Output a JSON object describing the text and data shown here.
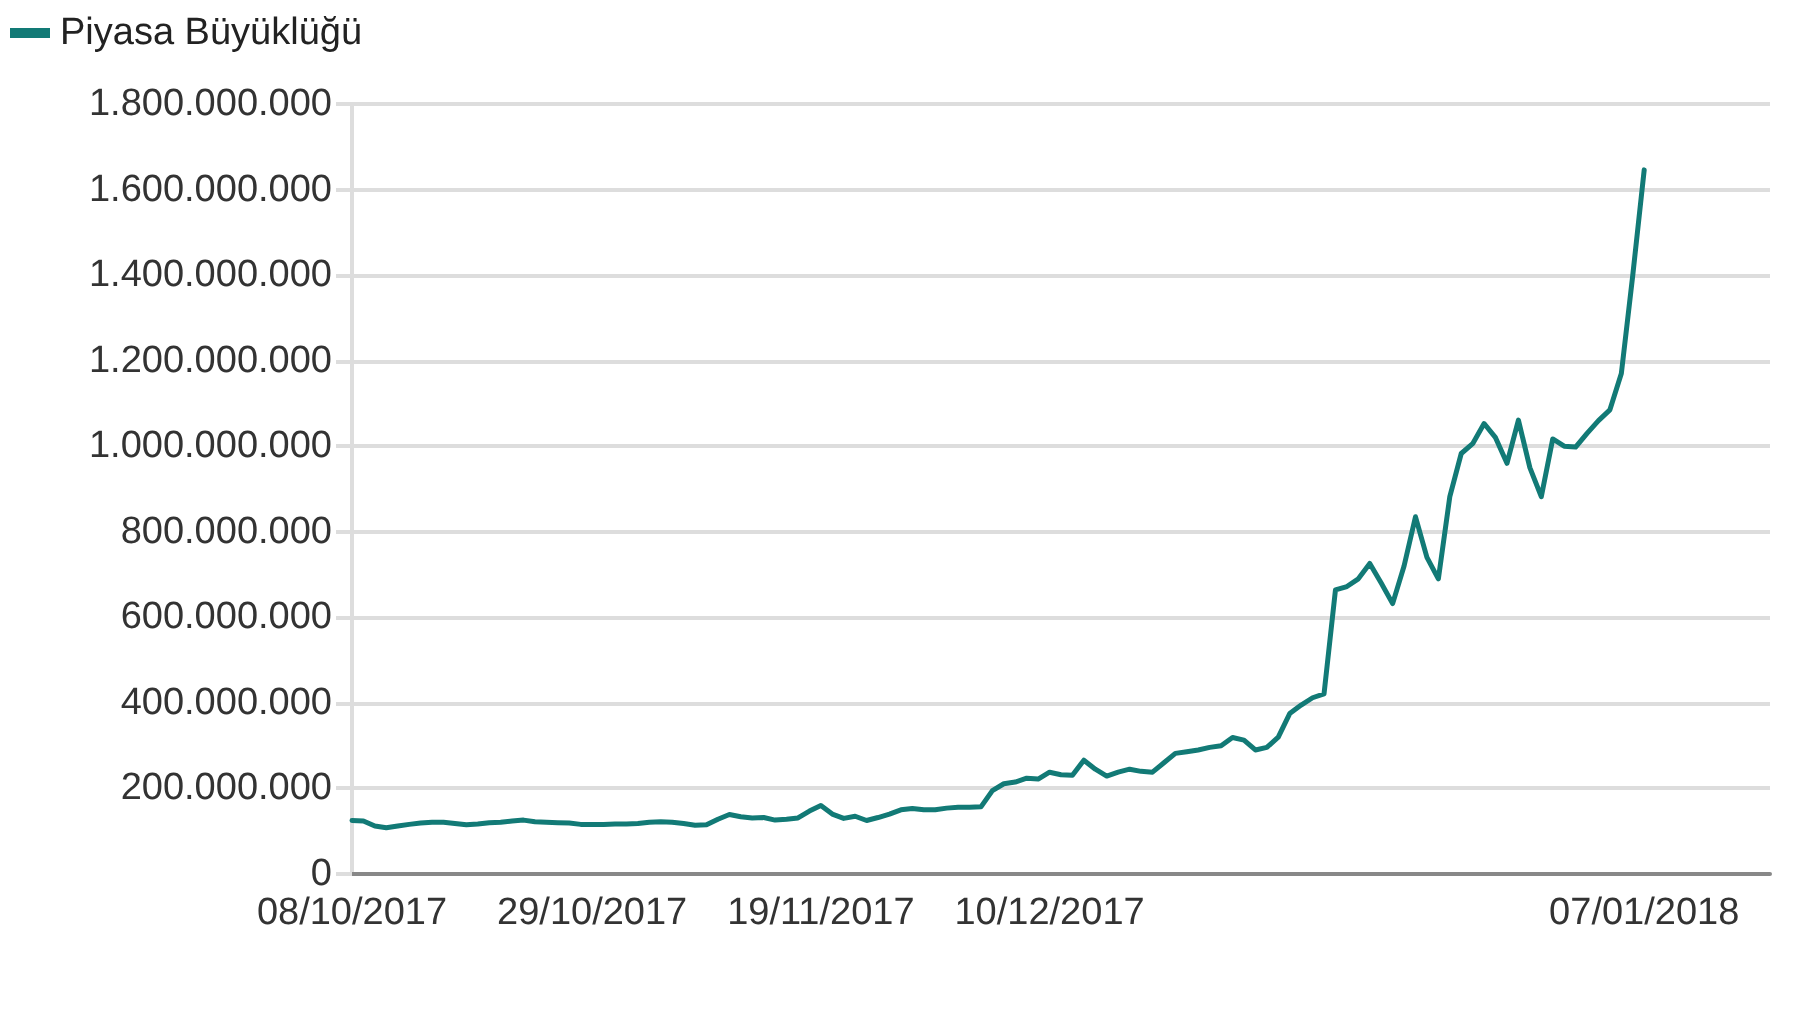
{
  "chart_data": {
    "type": "line",
    "categories": [
      "08/10/2017",
      null,
      null,
      null,
      null,
      null,
      null,
      null,
      null,
      null,
      null,
      null,
      null,
      null,
      null,
      null,
      null,
      null,
      null,
      null,
      null,
      "29/10/2017",
      null,
      null,
      null,
      null,
      null,
      null,
      null,
      null,
      null,
      null,
      null,
      null,
      null,
      null,
      null,
      null,
      null,
      null,
      null,
      "19/11/2017",
      null,
      null,
      null,
      null,
      null,
      null,
      null,
      null,
      null,
      null,
      null,
      null,
      null,
      null,
      null,
      null,
      null,
      null,
      null,
      "10/12/2017",
      null,
      null,
      null,
      null,
      null,
      null,
      null,
      null,
      null,
      null,
      null,
      null,
      null,
      null,
      null,
      null,
      null,
      null,
      null,
      null,
      null,
      null,
      null,
      null,
      null,
      null,
      null,
      null,
      null,
      null,
      null,
      null,
      null,
      null,
      null,
      null,
      null,
      null,
      null,
      null,
      null,
      null,
      null,
      null,
      null,
      null,
      null,
      null,
      null,
      null,
      null,
      "07/01/2018",
      null,
      null,
      null,
      null,
      null,
      null,
      null,
      null,
      null,
      null,
      null
    ],
    "series": [
      {
        "name": "Piyasa Büyüklüğü",
        "color": "#127a76",
        "values": [
          125000000,
          124000000,
          112000000,
          108000000,
          112000000,
          116000000,
          119000000,
          121000000,
          121000000,
          118000000,
          115000000,
          117000000,
          120000000,
          121000000,
          124000000,
          126000000,
          122000000,
          121000000,
          120000000,
          119000000,
          116000000,
          116000000,
          116000000,
          117000000,
          117000000,
          118000000,
          121000000,
          122000000,
          121000000,
          118000000,
          114000000,
          115000000,
          128000000,
          139000000,
          134000000,
          131000000,
          132000000,
          126000000,
          128000000,
          131000000,
          147000000,
          160000000,
          140000000,
          130000000,
          135000000,
          125000000,
          132000000,
          140000000,
          150000000,
          153000000,
          150000000,
          150000000,
          154000000,
          156000000,
          156000000,
          157000000,
          195000000,
          211000000,
          215000000,
          224000000,
          222000000,
          238000000,
          232000000,
          231000000,
          266000000,
          245000000,
          229000000,
          238000000,
          245000000,
          240000000,
          238000000,
          260000000,
          282000000,
          286000000,
          290000000,
          296000000,
          300000000,
          319000000,
          313000000,
          290000000,
          296000000,
          320000000,
          375000000,
          395000000,
          412000000,
          421000000,
          664000000,
          672000000,
          690000000,
          726000000,
          680000000,
          632000000,
          720000000,
          835000000,
          740000000,
          690000000,
          882000000,
          983000000,
          1006000000,
          1053000000,
          1020000000,
          960000000,
          1061000000,
          950000000,
          882000000,
          1017000000,
          1000000000,
          998000000,
          1030000000,
          1060000000,
          1085000000,
          1170000000,
          1400000000,
          1646000000,
          null,
          null,
          null,
          null,
          null,
          null,
          null,
          null,
          null,
          null,
          null
        ]
      }
    ],
    "ylim": [
      0,
      1800000000
    ],
    "yticks": [
      0,
      {
        "value": 200000000,
        "label": "200.000.000"
      },
      {
        "value": 400000000,
        "label": "400.000.000"
      },
      {
        "value": 600000000,
        "label": "600.000.000"
      },
      {
        "value": 800000000,
        "label": "800.000.000"
      },
      {
        "value": 1000000000,
        "label": "1.000.000.000"
      },
      {
        "value": 1200000000,
        "label": "1.200.000.000"
      },
      {
        "value": 1400000000,
        "label": "1.400.000.000"
      },
      {
        "value": 1600000000,
        "label": "1.600.000.000"
      },
      {
        "value": 1800000000,
        "label": "1.800.000.000"
      }
    ],
    "grid": "y",
    "legend": "top left",
    "marker": "none",
    "line_style": "solid"
  }
}
